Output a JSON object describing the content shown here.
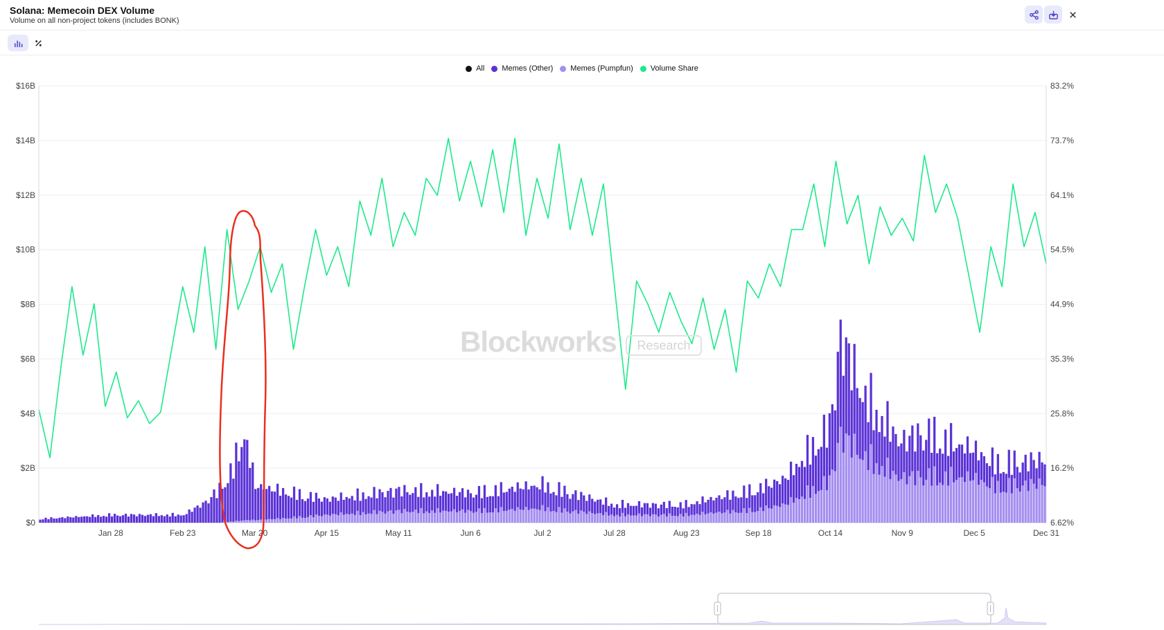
{
  "header": {
    "title": "Solana: Memecoin DEX Volume",
    "subtitle": "Volume on all non-project tokens (includes BONK)",
    "share_icon": "share-icon",
    "download_icon": "download-icon",
    "close_icon": "close-icon"
  },
  "toolbar": {
    "chart_view_icon": "bar-chart-icon",
    "percent_view_icon": "percent-icon"
  },
  "watermark": {
    "brand": "Blockworks",
    "badge": "Research"
  },
  "colors": {
    "all": "#111111",
    "memes_other": "#5b32d6",
    "memes_pumpfun": "#a48ef0",
    "volume_share": "#1de98b"
  },
  "chart_data": {
    "type": "bar",
    "stacked": true,
    "legend_position": "top-center",
    "grid": "horizontal",
    "x_ticks": [
      "Jan 28",
      "Feb 23",
      "Mar 20",
      "Apr 15",
      "May 11",
      "Jun 6",
      "Jul 2",
      "Jul 28",
      "Aug 23",
      "Sep 18",
      "Oct 14",
      "Nov 9",
      "Dec 5",
      "Dec 31"
    ],
    "y_left_ticks": [
      "$0",
      "$2B",
      "$4B",
      "$6B",
      "$8B",
      "$10B",
      "$12B",
      "$14B",
      "$16B"
    ],
    "y_right_ticks": [
      "6.62%",
      "16.2%",
      "25.8%",
      "35.3%",
      "44.9%",
      "54.5%",
      "64.1%",
      "73.7%",
      "83.2%"
    ],
    "ylim_left": [
      0,
      16
    ],
    "ylim_right": [
      6.62,
      83.2
    ],
    "y_left_unit": "billions USD",
    "x_days": [
      0,
      26,
      52,
      78,
      104,
      130,
      156,
      182,
      208,
      234,
      260,
      286,
      312,
      338,
      364
    ],
    "legend": [
      {
        "name": "All",
        "color": "#111111"
      },
      {
        "name": "Memes (Other)",
        "color": "#5b32d6"
      },
      {
        "name": "Memes (Pumpfun)",
        "color": "#a48ef0"
      },
      {
        "name": "Volume Share",
        "color": "#1de98b"
      }
    ],
    "series": [
      {
        "name": "Memes (Other)",
        "axis": "left",
        "x": [
          0,
          26,
          52,
          60,
          65,
          70,
          74,
          78,
          86,
          104,
          130,
          156,
          182,
          208,
          234,
          260,
          270,
          286,
          290,
          298,
          312,
          320,
          338,
          346,
          364
        ],
        "values": [
          0.15,
          0.3,
          0.3,
          0.8,
          1.3,
          2.1,
          3.4,
          1.3,
          1.1,
          0.6,
          0.8,
          0.7,
          0.9,
          0.4,
          0.4,
          0.8,
          1.0,
          2.1,
          3.8,
          2.4,
          1.4,
          1.7,
          1.1,
          0.9,
          0.9
        ]
      },
      {
        "name": "Memes (Pumpfun)",
        "axis": "left",
        "x": [
          0,
          26,
          52,
          60,
          65,
          70,
          74,
          78,
          86,
          104,
          130,
          156,
          182,
          208,
          234,
          260,
          270,
          286,
          290,
          298,
          312,
          320,
          338,
          346,
          364
        ],
        "values": [
          0.0,
          0.0,
          0.0,
          0.0,
          0.0,
          0.05,
          0.1,
          0.1,
          0.15,
          0.3,
          0.45,
          0.45,
          0.55,
          0.3,
          0.3,
          0.5,
          0.7,
          1.6,
          3.4,
          2.6,
          1.7,
          1.8,
          1.7,
          1.4,
          1.5
        ]
      },
      {
        "name": "Volume Share",
        "axis": "right",
        "x": [
          0,
          4,
          8,
          12,
          16,
          20,
          24,
          28,
          32,
          36,
          40,
          44,
          48,
          52,
          56,
          60,
          64,
          68,
          72,
          76,
          80,
          84,
          88,
          92,
          96,
          100,
          104,
          108,
          112,
          116,
          120,
          124,
          128,
          132,
          136,
          140,
          144,
          148,
          152,
          156,
          160,
          164,
          168,
          172,
          176,
          180,
          184,
          188,
          192,
          196,
          200,
          204,
          208,
          212,
          216,
          220,
          224,
          228,
          232,
          236,
          240,
          244,
          248,
          252,
          256,
          260,
          264,
          268,
          272,
          276,
          280,
          284,
          288,
          292,
          296,
          300,
          304,
          308,
          312,
          316,
          320,
          324,
          328,
          332,
          336,
          340,
          344,
          348,
          352,
          356,
          360,
          364
        ],
        "values": [
          26.5,
          18,
          34,
          48,
          36,
          45,
          27,
          33,
          25,
          28,
          24,
          26,
          37,
          48,
          40,
          55,
          37,
          58,
          44,
          49,
          55,
          47,
          52,
          37,
          48,
          58,
          50,
          55,
          48,
          63,
          57,
          67,
          55,
          61,
          57,
          67,
          64,
          74,
          63,
          70,
          62,
          72,
          61,
          74,
          57,
          67,
          60,
          73,
          58,
          67,
          57,
          66,
          48,
          30,
          49,
          45,
          40,
          47,
          42,
          38,
          46,
          37,
          44,
          33,
          49,
          46,
          52,
          48,
          58,
          58,
          66,
          55,
          70,
          59,
          64,
          52,
          62,
          57,
          60,
          56,
          71,
          61,
          66,
          60,
          50,
          40,
          55,
          48,
          66,
          55,
          61,
          52
        ]
      }
    ]
  }
}
